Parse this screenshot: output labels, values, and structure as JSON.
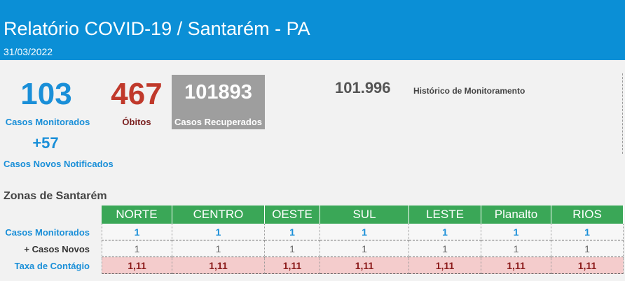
{
  "header": {
    "title": "Relatório COVID-19 / Santarém - PA",
    "date": "31/03/2022"
  },
  "kpis": {
    "monitored": {
      "value": "103",
      "label": "Casos Monitorados"
    },
    "deaths": {
      "value": "467",
      "label": "Óbitos"
    },
    "recovered": {
      "value": "101893",
      "label": "Casos Recuperados"
    },
    "new": {
      "value": "+57",
      "label": "Casos Novos Notificados"
    },
    "history": {
      "value": "101.996",
      "label": "Histórico de Monitoramento"
    }
  },
  "zones": {
    "title": "Zonas de Santarém",
    "columns": [
      "NORTE",
      "CENTRO",
      "OESTE",
      "SUL",
      "LESTE",
      "Planalto",
      "RIOS"
    ],
    "rows": [
      {
        "label": "Casos Monitorados",
        "cells": [
          "1",
          "1",
          "1",
          "1",
          "1",
          "1",
          "1"
        ]
      },
      {
        "label": "+ Casos Novos",
        "cells": [
          "1",
          "1",
          "1",
          "1",
          "1",
          "1",
          "1"
        ]
      },
      {
        "label": "Taxa de Contágio",
        "cells": [
          "1,11",
          "1,11",
          "1,11",
          "1,11",
          "1,11",
          "1,11",
          "1,11"
        ]
      }
    ]
  }
}
